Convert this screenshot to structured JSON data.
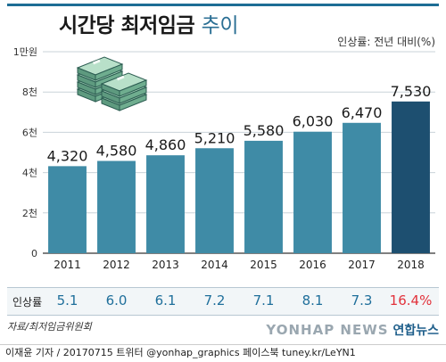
{
  "header": {
    "title_main": "시간당 최저임금",
    "title_sub": "추이",
    "legend_note": "인상률: 전년 대비(%)"
  },
  "chart_data": {
    "type": "bar",
    "categories": [
      "2011",
      "2012",
      "2013",
      "2014",
      "2015",
      "2016",
      "2017",
      "2018"
    ],
    "values": [
      4320,
      4580,
      4860,
      5210,
      5580,
      6030,
      6470,
      7530
    ],
    "value_labels": [
      "4,320",
      "4,580",
      "4,860",
      "5,210",
      "5,580",
      "6,030",
      "6,470",
      "7,530"
    ],
    "ylim": [
      0,
      10000
    ],
    "yticks": [
      0,
      2000,
      4000,
      6000,
      8000,
      10000
    ],
    "ytick_labels": [
      "0",
      "2천",
      "4천",
      "6천",
      "8천",
      "1만원"
    ],
    "grid": true,
    "colors": {
      "bar": "#3f8ba6",
      "bar_highlight": "#1d4f70",
      "grid": "#c9d3d9",
      "axis_text": "#333333"
    }
  },
  "rates": {
    "label": "인상률",
    "values": [
      "5.1",
      "6.0",
      "6.1",
      "7.2",
      "7.1",
      "8.1",
      "7.3",
      "16.4%"
    ],
    "highlight_index": 7,
    "color": "#1f6f9b",
    "highlight_color": "#e2323b"
  },
  "footer": {
    "source": "자료/최저임금위원회",
    "credit": "이재윤 기자 / 20170715 트위터 @yonhap_graphics 페이스북 tuney.kr/LeYN1",
    "logo_text": "연합뉴스",
    "watermark": "YONHAP NEWS"
  },
  "icons": {
    "money": "money-stack-icon"
  }
}
